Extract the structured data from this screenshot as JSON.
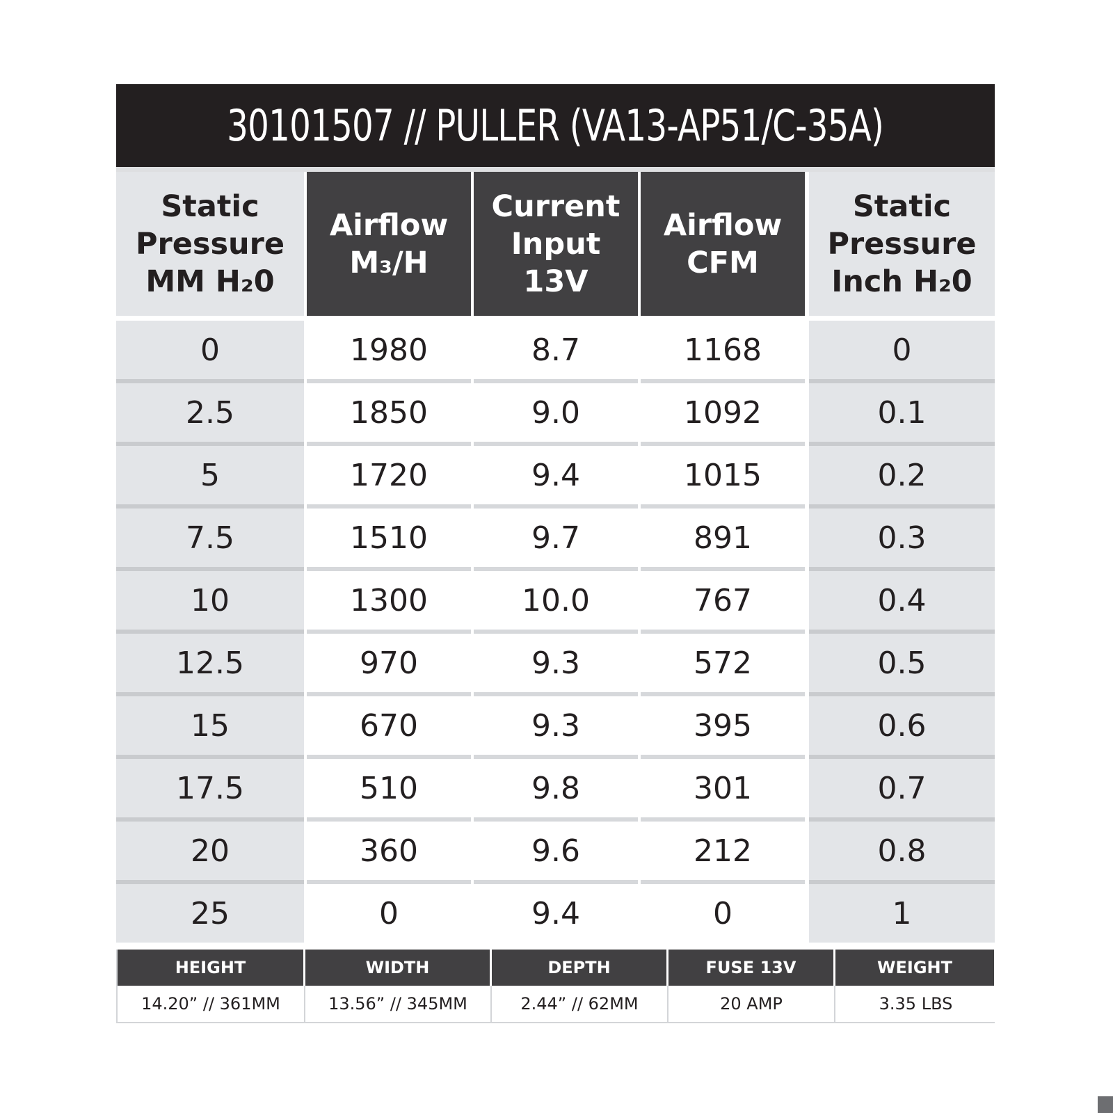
{
  "title": "30101507 // PULLER (VA13-AP51/C-35A)",
  "headers": [
    "Static\nPressure\nMM H₂0",
    "Airflow\nM₃/H",
    "Current\nInput\n13V",
    "Airflow\nCFM",
    "Static\nPressure\nInch H₂0"
  ],
  "rows": [
    [
      "0",
      "1980",
      "8.7",
      "1168",
      "0"
    ],
    [
      "2.5",
      "1850",
      "9.0",
      "1092",
      "0.1"
    ],
    [
      "5",
      "1720",
      "9.4",
      "1015",
      "0.2"
    ],
    [
      "7.5",
      "1510",
      "9.7",
      "891",
      "0.3"
    ],
    [
      "10",
      "1300",
      "10.0",
      "767",
      "0.4"
    ],
    [
      "12.5",
      "970",
      "9.3",
      "572",
      "0.5"
    ],
    [
      "15",
      "670",
      "9.3",
      "395",
      "0.6"
    ],
    [
      "17.5",
      "510",
      "9.8",
      "301",
      "0.7"
    ],
    [
      "20",
      "360",
      "9.6",
      "212",
      "0.8"
    ],
    [
      "25",
      "0",
      "9.4",
      "0",
      "1"
    ]
  ],
  "specs": {
    "headers": [
      "HEIGHT",
      "WIDTH",
      "DEPTH",
      "FUSE 13V",
      "WEIGHT"
    ],
    "values": [
      "14.20” // 361MM",
      "13.56” // 345MM",
      "2.44” // 62MM",
      "20 AMP",
      "3.35 LBS"
    ]
  },
  "colors": {
    "title_bg": "#231f20",
    "header_dark": "#414042",
    "header_light": "#e3e5e8",
    "text": "#231f20"
  }
}
